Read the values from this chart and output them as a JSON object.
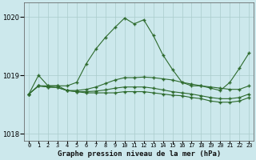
{
  "title": "Graphe pression niveau de la mer (hPa)",
  "bg_color": "#cce8ec",
  "grid_color": "#aacccc",
  "line_color": "#2d6a2d",
  "hours": [
    0,
    1,
    2,
    3,
    4,
    5,
    6,
    7,
    8,
    9,
    10,
    11,
    12,
    13,
    14,
    15,
    16,
    17,
    18,
    19,
    20,
    21,
    22,
    23
  ],
  "series1": [
    1018.68,
    1019.0,
    1018.82,
    1018.82,
    1018.82,
    1018.88,
    1019.2,
    1019.45,
    1019.65,
    1019.82,
    1019.98,
    1019.88,
    1019.95,
    1019.68,
    1019.35,
    1019.1,
    1018.88,
    1018.82,
    1018.82,
    1018.78,
    1018.74,
    1018.88,
    1019.12,
    1019.38
  ],
  "series2": [
    1018.68,
    1018.82,
    1018.82,
    1018.82,
    1018.74,
    1018.74,
    1018.76,
    1018.8,
    1018.86,
    1018.92,
    1018.96,
    1018.96,
    1018.97,
    1018.96,
    1018.94,
    1018.92,
    1018.88,
    1018.85,
    1018.82,
    1018.8,
    1018.78,
    1018.76,
    1018.76,
    1018.82
  ],
  "series3": [
    1018.68,
    1018.82,
    1018.8,
    1018.79,
    1018.74,
    1018.72,
    1018.7,
    1018.7,
    1018.7,
    1018.7,
    1018.72,
    1018.72,
    1018.72,
    1018.7,
    1018.68,
    1018.66,
    1018.65,
    1018.62,
    1018.6,
    1018.56,
    1018.54,
    1018.54,
    1018.56,
    1018.62
  ],
  "series4": [
    1018.68,
    1018.82,
    1018.8,
    1018.79,
    1018.74,
    1018.72,
    1018.72,
    1018.73,
    1018.75,
    1018.78,
    1018.8,
    1018.8,
    1018.8,
    1018.78,
    1018.75,
    1018.72,
    1018.7,
    1018.68,
    1018.65,
    1018.62,
    1018.6,
    1018.6,
    1018.62,
    1018.68
  ],
  "ylim": [
    1017.88,
    1020.25
  ],
  "yticks": [
    1018.0,
    1019.0,
    1020.0
  ],
  "xtick_labels": [
    "0",
    "1",
    "2",
    "3",
    "4",
    "5",
    "6",
    "7",
    "8",
    "9",
    "10",
    "11",
    "12",
    "13",
    "14",
    "15",
    "16",
    "17",
    "18",
    "19",
    "20",
    "21",
    "22",
    "23"
  ]
}
